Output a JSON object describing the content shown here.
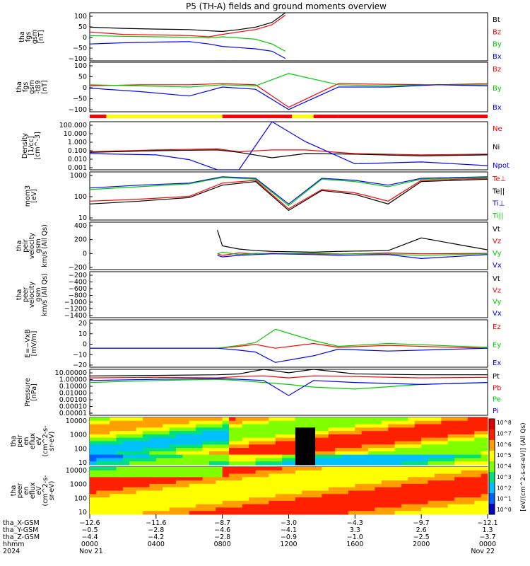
{
  "title": "P5 (TH-A) fields and ground moments overview",
  "colors": {
    "black": "#000000",
    "red": "#ff0000",
    "green": "#00cc00",
    "blue": "#0000ff",
    "yellow": "#ffff00"
  },
  "chart_data": {
    "type": "line",
    "title": "P5 (TH-A) fields and ground moments overview",
    "mode_bar": {
      "segments": [
        {
          "start": "0000",
          "end": "0800",
          "color": "red-yellow"
        },
        {
          "start": "0800",
          "end": "1500",
          "color": "red"
        },
        {
          "start": "1500",
          "end": "2400",
          "color": "red"
        }
      ]
    },
    "panels": [
      {
        "ylabel": [
          "tha",
          "fgs",
          "gsm",
          "[nT]"
        ],
        "ylim": [
          -100,
          100
        ],
        "ticks": [
          "100",
          "50",
          "0",
          "−50",
          "−100"
        ],
        "series": [
          {
            "name": "Bt",
            "color": "black",
            "x": [
              0,
              2,
              4,
              6,
              7.2,
              8,
              9,
              10,
              11,
              11.8
            ],
            "y": [
              40,
              35,
              32,
              30,
              25,
              22,
              30,
              40,
              60,
              100
            ]
          },
          {
            "name": "Bz",
            "color": "red",
            "x": [
              0,
              2,
              4,
              6,
              7.2,
              8,
              9,
              10,
              11,
              11.8
            ],
            "y": [
              20,
              10,
              8,
              5,
              0,
              10,
              20,
              30,
              50,
              90
            ]
          },
          {
            "name": "By",
            "color": "green",
            "x": [
              0,
              2,
              4,
              6,
              7.2,
              8,
              9,
              10,
              11,
              11.8
            ],
            "y": [
              5,
              2,
              0,
              -2,
              -5,
              0,
              -5,
              -10,
              -30,
              -60
            ]
          },
          {
            "name": "Bx",
            "color": "blue",
            "x": [
              0,
              2,
              4,
              6,
              7.2,
              8,
              9,
              10,
              11,
              11.8
            ],
            "y": [
              -30,
              -25,
              -22,
              -20,
              -30,
              -40,
              -45,
              -50,
              -60,
              -90
            ]
          }
        ]
      },
      {
        "ylabel": [
          "tha",
          "fgs",
          "gsm",
          "-t89",
          "[nT]"
        ],
        "ylim": [
          -120,
          100
        ],
        "ticks": [
          "100",
          "50",
          "0",
          "−50",
          "−100"
        ],
        "series": [
          {
            "name": "Bz",
            "color": "red",
            "x": [
              0,
              3,
              6,
              8,
              10,
              12,
              15,
              18,
              21,
              24
            ],
            "y": [
              -5,
              0,
              0,
              5,
              0,
              -100,
              5,
              2,
              0,
              5
            ]
          },
          {
            "name": "By",
            "color": "green",
            "x": [
              0,
              3,
              6,
              8,
              10,
              12,
              15,
              18,
              21,
              24
            ],
            "y": [
              0,
              -5,
              -10,
              0,
              -5,
              50,
              0,
              -5,
              0,
              0
            ]
          },
          {
            "name": "Bx",
            "color": "blue",
            "x": [
              0,
              3,
              6,
              8,
              10,
              12,
              15,
              18,
              21,
              24
            ],
            "y": [
              -15,
              -30,
              -50,
              -10,
              -20,
              -110,
              -10,
              -10,
              0,
              -5
            ]
          }
        ]
      },
      {
        "ylabel": [
          "Density",
          "[1/cc]",
          "[cm^-3]"
        ],
        "ylim_log": [
          0.001,
          100000
        ],
        "ticks": [
          "100.000",
          "10.000",
          "1.000",
          "0.100",
          "0.010",
          "0.001"
        ],
        "series": [
          {
            "name": "Ne",
            "color": "red",
            "x": [
              0,
              4,
              7.7,
              9,
              11,
              13,
              16,
              20,
              24
            ],
            "y": [
              1,
              2,
              3,
              1,
              2,
              2,
              0.5,
              0.3,
              0.4
            ]
          },
          {
            "name": "Ni",
            "color": "black",
            "x": [
              0,
              4,
              7.7,
              9,
              11,
              13,
              16,
              20,
              24
            ],
            "y": [
              0.8,
              1.5,
              2,
              0.8,
              0.1,
              0.5,
              0.4,
              0.2,
              0.3
            ]
          },
          {
            "name": "Npot",
            "color": "blue",
            "x": [
              0,
              4,
              6,
              7.7,
              9,
              11,
              13,
              16,
              20,
              24
            ],
            "y": [
              0.5,
              0.3,
              0.05,
              0.001,
              0.001,
              100000,
              50,
              0.01,
              0.02,
              0.005
            ]
          }
        ]
      },
      {
        "ylabel": [
          "mom3",
          "[eV]"
        ],
        "ylim_log": [
          10,
          10000
        ],
        "ticks": [
          "1000",
          "100",
          "10"
        ],
        "series": [
          {
            "name": "Te⊥",
            "color": "red",
            "x": [
              0,
              3,
              6,
              8,
              10,
              12,
              14,
              16,
              18,
              20,
              24
            ],
            "y": [
              150,
              200,
              300,
              2000,
              3000,
              50,
              800,
              500,
              150,
              3000,
              4000
            ]
          },
          {
            "name": "Te||",
            "color": "black",
            "x": [
              0,
              3,
              6,
              8,
              10,
              12,
              14,
              16,
              18,
              20,
              24
            ],
            "y": [
              100,
              150,
              250,
              1500,
              2500,
              40,
              700,
              400,
              100,
              2500,
              3500
            ]
          },
          {
            "name": "Ti⊥",
            "color": "blue",
            "x": [
              0,
              3,
              6,
              8,
              10,
              12,
              14,
              16,
              18,
              20,
              24
            ],
            "y": [
              1000,
              1500,
              2000,
              5000,
              4000,
              100,
              4000,
              3000,
              1500,
              4000,
              5000
            ]
          },
          {
            "name": "Ti||",
            "color": "green",
            "x": [
              0,
              3,
              6,
              8,
              10,
              12,
              14,
              16,
              18,
              20,
              24
            ],
            "y": [
              800,
              1200,
              1800,
              4500,
              3500,
              80,
              3500,
              2500,
              1200,
              3500,
              4500
            ]
          }
        ]
      },
      {
        "ylabel": [
          "tha",
          "peir",
          "velocity",
          "gsm",
          "km/s (All Qs)"
        ],
        "ylim": [
          -200,
          400
        ],
        "ticks": [
          "400",
          "200",
          "0",
          "−200"
        ],
        "series": [
          {
            "name": "Vt",
            "color": "black",
            "x": [
              7.7,
              8,
              9,
              10,
              11,
              13.5,
              15,
              18,
              20,
              24
            ],
            "y": [
              300,
              100,
              60,
              40,
              30,
              20,
              30,
              40,
              200,
              50
            ]
          },
          {
            "name": "Vz",
            "color": "red",
            "x": [
              7.7,
              8,
              9,
              10,
              11,
              13.5,
              15,
              18,
              20,
              24
            ],
            "y": [
              0,
              -20,
              10,
              0,
              5,
              0,
              -5,
              10,
              0,
              5
            ]
          },
          {
            "name": "Vy",
            "color": "green",
            "x": [
              7.7,
              8,
              9,
              10,
              11,
              13.5,
              15,
              18,
              20,
              24
            ],
            "y": [
              0,
              20,
              -10,
              5,
              0,
              10,
              0,
              -5,
              -20,
              0
            ]
          },
          {
            "name": "Vx",
            "color": "blue",
            "x": [
              7.7,
              8,
              9,
              10,
              11,
              13.5,
              15,
              18,
              20,
              24
            ],
            "y": [
              -20,
              -40,
              -20,
              -10,
              0,
              -10,
              -20,
              -10,
              -60,
              -10
            ]
          }
        ]
      },
      {
        "ylabel": [
          "tha",
          "peer",
          "velocity",
          "gsm",
          "km/s (All Qs)"
        ],
        "ylim": [
          -1400,
          0
        ],
        "ticks": [
          "−200",
          "−400",
          "−600",
          "−800",
          "−1000",
          "−1200",
          "−1400"
        ],
        "series": [
          {
            "name": "Vt",
            "color": "black",
            "x": [],
            "y": []
          },
          {
            "name": "Vz",
            "color": "red",
            "x": [],
            "y": []
          },
          {
            "name": "Vy",
            "color": "green",
            "x": [],
            "y": []
          },
          {
            "name": "Vx",
            "color": "blue",
            "x": [],
            "y": []
          }
        ]
      },
      {
        "ylabel": [
          "E=−VxB",
          "[mV/m]"
        ],
        "ylim": [
          -20,
          30
        ],
        "ticks": [
          "20",
          "10",
          "0",
          "−10",
          "−20"
        ],
        "series": [
          {
            "name": "Ez",
            "color": "red",
            "x": [
              0,
              1,
              7.7,
              9,
              10,
              11.2,
              13.5,
              15,
              18,
              24
            ],
            "y": [
              0,
              0,
              0,
              2,
              4,
              0,
              5,
              1,
              3,
              0
            ]
          },
          {
            "name": "Ey",
            "color": "green",
            "x": [
              0,
              1,
              7.7,
              9,
              10,
              11.2,
              13.5,
              15,
              18,
              24
            ],
            "y": [
              0,
              0,
              0,
              3,
              6,
              20,
              8,
              2,
              5,
              1
            ]
          },
          {
            "name": "Ex",
            "color": "blue",
            "x": [
              0,
              1,
              7.7,
              9,
              10,
              11.2,
              13.5,
              15,
              18,
              24
            ],
            "y": [
              0,
              0,
              0,
              -2,
              -4,
              -15,
              -8,
              -1,
              -3,
              0
            ]
          }
        ]
      },
      {
        "ylabel": [
          "Pressure",
          "[nPa]"
        ],
        "ylim_log": [
          1e-06,
          10
        ],
        "ticks": [
          "10.00000",
          "1.00000",
          "0.10000",
          "0.01000",
          "0.00100",
          "0.00010",
          "0.00001"
        ],
        "series": [
          {
            "name": "Pt",
            "color": "black",
            "x": [
              0,
              4,
              7.7,
              9,
              10.5,
              12,
              13.5,
              16,
              20,
              24
            ],
            "y": [
              1,
              1.2,
              1.5,
              2,
              10,
              3,
              10,
              2,
              1.5,
              1.5
            ]
          },
          {
            "name": "Pb",
            "color": "red",
            "x": [
              0,
              4,
              7.7,
              9,
              10.5,
              12,
              13.5,
              16,
              20,
              24
            ],
            "y": [
              0.5,
              0.6,
              0.5,
              0.8,
              1,
              0.5,
              1,
              0.8,
              0.5,
              0.6
            ]
          },
          {
            "name": "Pe",
            "color": "green",
            "x": [
              0,
              4,
              7.7,
              9,
              10.5,
              12,
              13.5,
              16,
              20,
              24
            ],
            "y": [
              0.1,
              0.2,
              0.3,
              0.2,
              0.1,
              0.05,
              0.02,
              0.01,
              0.05,
              0.1
            ]
          },
          {
            "name": "Pi",
            "color": "blue",
            "x": [
              0,
              4,
              7.7,
              9,
              10.5,
              12,
              13.5,
              16,
              20,
              24
            ],
            "y": [
              0.2,
              0.3,
              0.4,
              0.3,
              0.2,
              0.001,
              0.2,
              0.1,
              0.05,
              0.1
            ]
          }
        ]
      },
      {
        "ylabel": [
          "tha",
          "peir",
          "en",
          "eflux",
          "eV",
          "(cm^2-s-",
          "sr-eV)"
        ],
        "ylim_log": [
          10,
          30000
        ],
        "ticks": [
          "10000",
          "1000",
          "100",
          "10"
        ],
        "type": "heatmap"
      },
      {
        "ylabel": [
          "tha",
          "peer",
          "en",
          "eflux",
          "eV",
          "(cm^2-s-",
          "sr-eV)"
        ],
        "ylim_log": [
          10,
          30000
        ],
        "ticks": [
          "10000",
          "1000",
          "100",
          "10"
        ],
        "type": "heatmap"
      }
    ],
    "colorbar": {
      "label": "[eV/(cm^2-s-sr-eV)] (All Qs)",
      "ticks": [
        "10^8",
        "10^7",
        "10^6",
        "10^5",
        "10^4",
        "10^3",
        "10^2",
        "10^1",
        "10^0"
      ]
    },
    "xaxis": {
      "rows": [
        {
          "label": "tha_X-GSM",
          "values": [
            "−12.6",
            "−11.6",
            "−8.7",
            "−3.0",
            "−4.3",
            "−9.7",
            "−12.1"
          ]
        },
        {
          "label": "tha_Y-GSM",
          "values": [
            "−0.5",
            "−2.8",
            "−4.6",
            "−4.1",
            "3.3",
            "2.6",
            "1.3"
          ]
        },
        {
          "label": "tha_Z-GSM",
          "values": [
            "−4.4",
            "−4.2",
            "−2.8",
            "−0.9",
            "−1.0",
            "−2.5",
            "−3.7"
          ]
        },
        {
          "label": "hhmm",
          "values": [
            "0000",
            "0400",
            "0800",
            "1200",
            "1600",
            "2000",
            "0000"
          ]
        },
        {
          "label": "2024",
          "values": [
            "Nov 21",
            "",
            "",
            "",
            "",
            "",
            "Nov 22"
          ]
        }
      ],
      "hours": [
        0,
        4,
        8,
        12,
        16,
        20,
        24
      ]
    }
  }
}
